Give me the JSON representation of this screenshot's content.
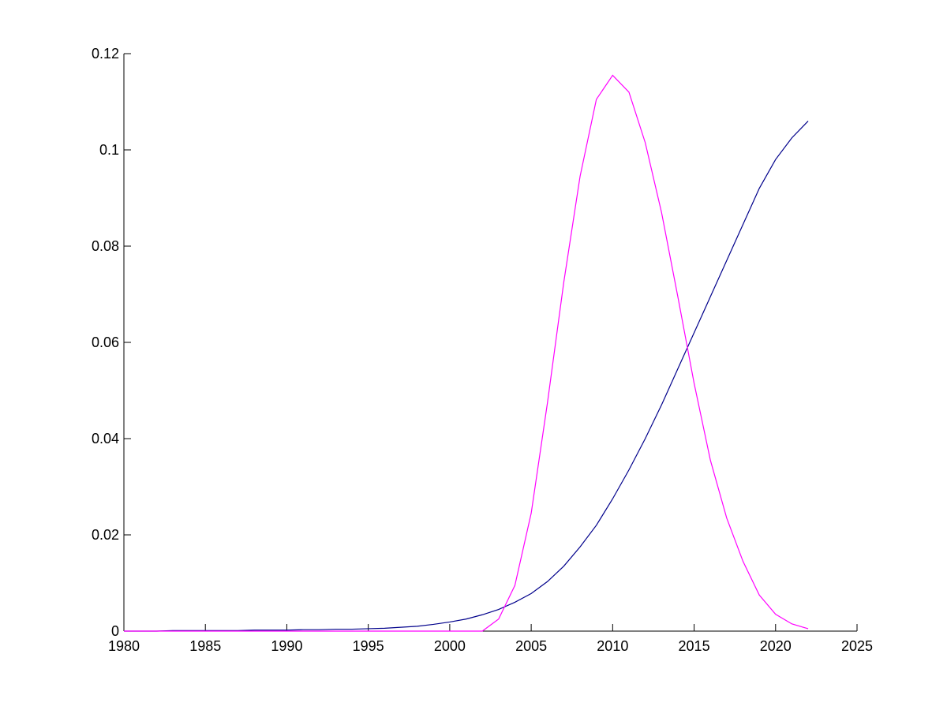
{
  "chart_data": {
    "type": "line",
    "x": [
      1980,
      1981,
      1982,
      1983,
      1984,
      1985,
      1986,
      1987,
      1988,
      1989,
      1990,
      1991,
      1992,
      1993,
      1994,
      1995,
      1996,
      1997,
      1998,
      1999,
      2000,
      2001,
      2002,
      2003,
      2004,
      2005,
      2006,
      2007,
      2008,
      2009,
      2010,
      2011,
      2012,
      2013,
      2014,
      2015,
      2016,
      2017,
      2018,
      2019,
      2020,
      2021,
      2022
    ],
    "series": [
      {
        "color": "#00008b",
        "values": [
          0,
          0,
          0,
          0.0001,
          0.0001,
          0.0001,
          0.0001,
          0.0001,
          0.0002,
          0.0002,
          0.0002,
          0.0003,
          0.0003,
          0.0004,
          0.0004,
          0.0005,
          0.0006,
          0.0008,
          0.001,
          0.0014,
          0.0019,
          0.0025,
          0.0034,
          0.0045,
          0.006,
          0.0078,
          0.0103,
          0.0135,
          0.0175,
          0.022,
          0.0275,
          0.0335,
          0.04,
          0.047,
          0.0545,
          0.062,
          0.0695,
          0.077,
          0.0845,
          0.092,
          0.098,
          0.1025,
          0.106
        ]
      },
      {
        "color": "#ff00ff",
        "values": [
          0,
          0,
          0,
          0,
          0,
          0,
          0,
          0,
          0,
          0,
          0,
          0,
          0,
          0,
          0,
          0,
          0,
          0,
          0,
          0,
          0,
          0,
          0,
          0.0025,
          0.0095,
          0.0245,
          0.0475,
          0.0725,
          0.0945,
          0.1105,
          0.1155,
          0.112,
          0.1015,
          0.087,
          0.0695,
          0.0515,
          0.0355,
          0.0235,
          0.0145,
          0.0075,
          0.0035,
          0.0015,
          0.0005
        ]
      }
    ],
    "xlim": [
      1980,
      2025
    ],
    "xticks": [
      1980,
      1985,
      1990,
      1995,
      2000,
      2005,
      2010,
      2015,
      2020,
      2025
    ],
    "ylim": [
      0,
      0.12
    ],
    "yticks": [
      0,
      0.02,
      0.04,
      0.06,
      0.08,
      0.1,
      0.12
    ]
  }
}
